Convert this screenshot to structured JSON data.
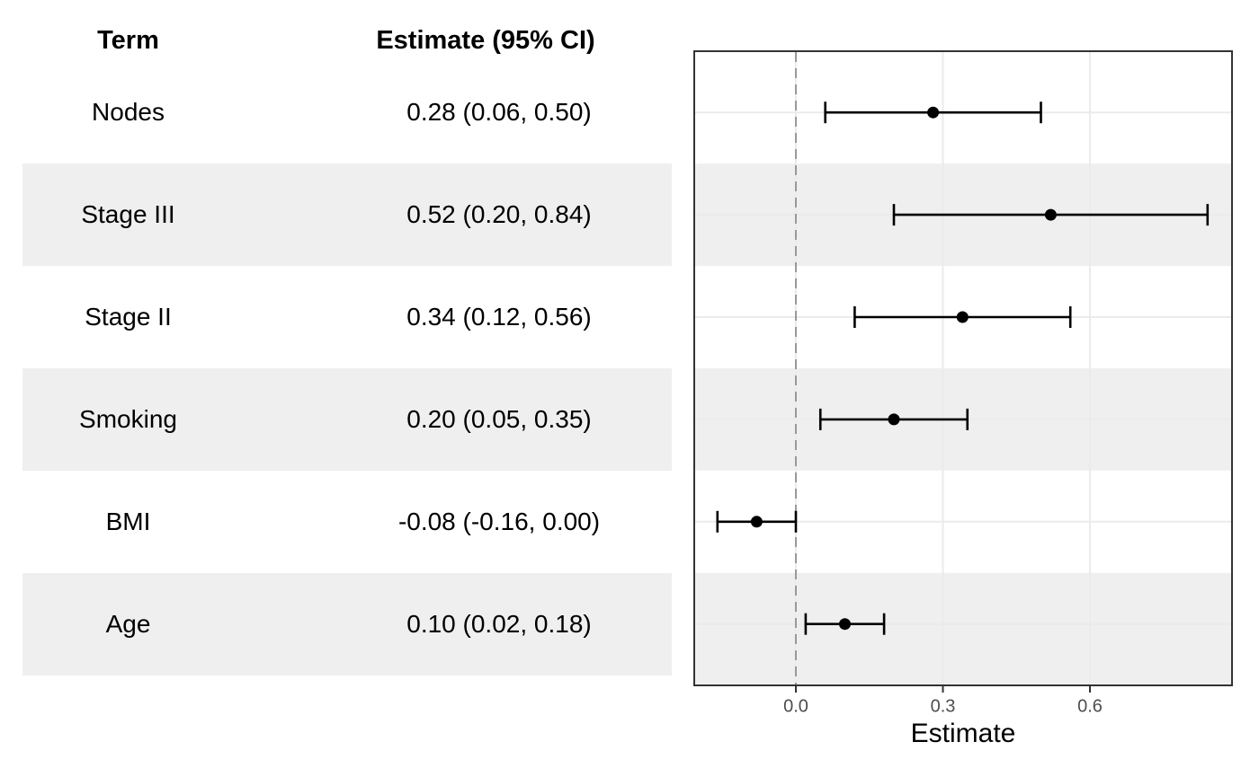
{
  "table": {
    "term_header": "Term",
    "estimate_header": "Estimate (95% CI)"
  },
  "chart_data": {
    "type": "scatter",
    "subtype": "forest-plot",
    "title": "",
    "xlabel": "Estimate",
    "ylabel": "",
    "xlim": [
      -0.21,
      0.89
    ],
    "xticks": {
      "values": [
        0.0,
        0.3,
        0.6
      ],
      "labels": [
        "0.0",
        "0.3",
        "0.6"
      ]
    },
    "reference_line_x": 0.0,
    "reference_line_style": "dashed",
    "grid": "major-only",
    "legend": "none",
    "rows": [
      {
        "term": "Nodes",
        "estimate": 0.28,
        "ci_low": 0.06,
        "ci_high": 0.5,
        "estimate_label": "0.28 (0.06, 0.50)",
        "striped": false
      },
      {
        "term": "Stage III",
        "estimate": 0.52,
        "ci_low": 0.2,
        "ci_high": 0.84,
        "estimate_label": "0.52 (0.20, 0.84)",
        "striped": true
      },
      {
        "term": "Stage II",
        "estimate": 0.34,
        "ci_low": 0.12,
        "ci_high": 0.56,
        "estimate_label": "0.34 (0.12, 0.56)",
        "striped": false
      },
      {
        "term": "Smoking",
        "estimate": 0.2,
        "ci_low": 0.05,
        "ci_high": 0.35,
        "estimate_label": "0.20 (0.05, 0.35)",
        "striped": true
      },
      {
        "term": "BMI",
        "estimate": -0.08,
        "ci_low": -0.16,
        "ci_high": 0.0,
        "estimate_label": "-0.08 (-0.16, 0.00)",
        "striped": false
      },
      {
        "term": "Age",
        "estimate": 0.1,
        "ci_low": 0.02,
        "ci_high": 0.18,
        "estimate_label": "0.10 (0.02, 0.18)",
        "striped": true
      }
    ]
  },
  "colors": {
    "background": "#FFFFFF",
    "stripe": "#EFEFEF",
    "grid": "#EBEBEB",
    "reference_line": "#999999",
    "panel_border": "#333333",
    "marker": "#000000",
    "error_bar": "#000000",
    "axis_tick": "#333333",
    "axis_text": "#4D4D4D",
    "text": "#000000"
  }
}
